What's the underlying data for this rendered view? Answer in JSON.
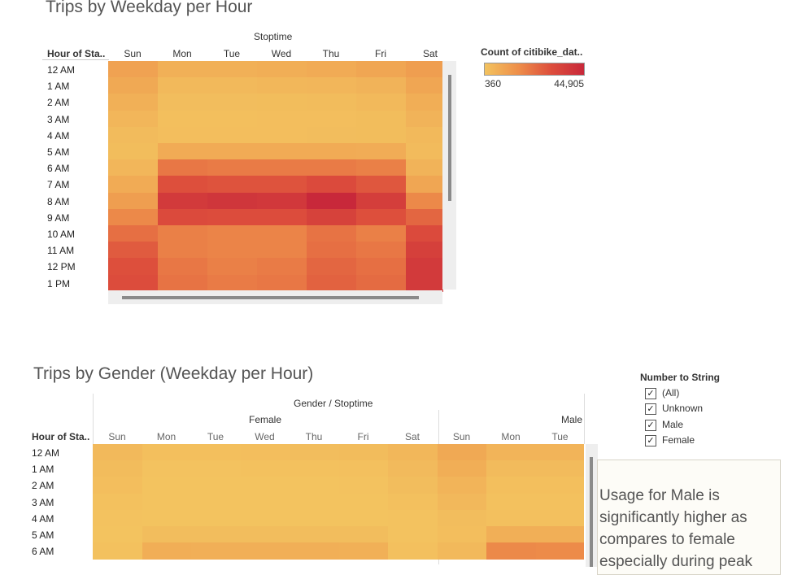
{
  "top_chart": {
    "title": "Trips by Weekday per Hour",
    "column_header": "Stoptime",
    "row_header": "Hour of Sta..",
    "days": [
      "Sun",
      "Mon",
      "Tue",
      "Wed",
      "Thu",
      "Fri",
      "Sat"
    ],
    "hours": [
      "12 AM",
      "1 AM",
      "2 AM",
      "3 AM",
      "4 AM",
      "5 AM",
      "6 AM",
      "7 AM",
      "8 AM",
      "9 AM",
      "10 AM",
      "11 AM",
      "12 PM",
      "1 PM"
    ]
  },
  "legend": {
    "title": "Count of citibike_dat..",
    "min_label": "360",
    "max_label": "44,905",
    "colors": [
      "#f3c35f",
      "#ee8f4a",
      "#dd4e3c",
      "#c8283a"
    ]
  },
  "bottom_chart": {
    "title": "Trips by Gender (Weekday per Hour)",
    "column_header": "Gender / Stoptime",
    "row_header": "Hour of Sta..",
    "groups": [
      "Female",
      "Male"
    ],
    "female_days": [
      "Sun",
      "Mon",
      "Tue",
      "Wed",
      "Thu",
      "Fri",
      "Sat"
    ],
    "male_days": [
      "Sun",
      "Mon",
      "Tue"
    ],
    "hours": [
      "12 AM",
      "1 AM",
      "2 AM",
      "3 AM",
      "4 AM",
      "5 AM",
      "6 AM"
    ]
  },
  "filter": {
    "title": "Number to String",
    "options": [
      {
        "label": "(All)",
        "checked": true
      },
      {
        "label": "Unknown",
        "checked": true
      },
      {
        "label": "Male",
        "checked": true
      },
      {
        "label": "Female",
        "checked": true
      }
    ]
  },
  "annotation": {
    "line1": "Usage for Male is",
    "line2": "significantly higher as",
    "line3": "compares to female",
    "line4": "especially during peak"
  },
  "chart_data": [
    {
      "type": "heatmap",
      "title": "Trips by Weekday per Hour",
      "xlabel": "Stoptime",
      "ylabel": "Hour of Sta..",
      "x": [
        "Sun",
        "Mon",
        "Tue",
        "Wed",
        "Thu",
        "Fri",
        "Sat"
      ],
      "y": [
        "12 AM",
        "1 AM",
        "2 AM",
        "3 AM",
        "4 AM",
        "5 AM",
        "6 AM",
        "7 AM",
        "8 AM",
        "9 AM",
        "10 AM",
        "11 AM",
        "12 PM",
        "1 PM"
      ],
      "color_range": [
        360,
        44905
      ],
      "values": [
        [
          6000,
          3000,
          3000,
          3500,
          4000,
          5000,
          7000
        ],
        [
          4500,
          1500,
          1500,
          1800,
          2000,
          2500,
          5000
        ],
        [
          3000,
          900,
          900,
          1000,
          1100,
          1500,
          3500
        ],
        [
          2000,
          700,
          700,
          800,
          800,
          1000,
          2500
        ],
        [
          1200,
          800,
          800,
          800,
          900,
          1000,
          1500
        ],
        [
          1000,
          4000,
          4000,
          4000,
          4000,
          3800,
          1200
        ],
        [
          2000,
          16000,
          15000,
          15000,
          15000,
          14000,
          2500
        ],
        [
          4000,
          26000,
          25000,
          25000,
          28000,
          24000,
          5000
        ],
        [
          7000,
          36000,
          38000,
          37000,
          44905,
          34000,
          12000
        ],
        [
          12000,
          28000,
          27000,
          27000,
          32000,
          26000,
          20000
        ],
        [
          18000,
          14000,
          13000,
          13000,
          17000,
          14000,
          28000
        ],
        [
          23000,
          14000,
          13000,
          13000,
          18000,
          16000,
          33000
        ],
        [
          26000,
          16000,
          14000,
          15000,
          20000,
          18000,
          36000
        ],
        [
          27000,
          17000,
          15000,
          16000,
          21000,
          19000,
          36000
        ]
      ]
    },
    {
      "type": "heatmap",
      "title": "Trips by Gender (Weekday per Hour)",
      "xlabel": "Gender / Stoptime",
      "ylabel": "Hour of Sta..",
      "groups": [
        {
          "name": "Female",
          "x": [
            "Sun",
            "Mon",
            "Tue",
            "Wed",
            "Thu",
            "Fri",
            "Sat"
          ]
        },
        {
          "name": "Male",
          "x": [
            "Sun",
            "Mon",
            "Tue"
          ]
        }
      ],
      "y": [
        "12 AM",
        "1 AM",
        "2 AM",
        "3 AM",
        "4 AM",
        "5 AM",
        "6 AM"
      ],
      "color_range": [
        360,
        44905
      ],
      "values": [
        [
          1500,
          700,
          700,
          800,
          900,
          1100,
          1800,
          4500,
          2300,
          2300
        ],
        [
          1100,
          400,
          400,
          500,
          500,
          600,
          1300,
          3500,
          1200,
          1200
        ],
        [
          800,
          300,
          300,
          300,
          300,
          400,
          900,
          2400,
          700,
          700
        ],
        [
          500,
          200,
          200,
          200,
          200,
          300,
          600,
          1600,
          500,
          500
        ],
        [
          400,
          200,
          200,
          200,
          200,
          300,
          400,
          900,
          600,
          600
        ],
        [
          300,
          900,
          900,
          900,
          900,
          900,
          400,
          800,
          3300,
          3300
        ],
        [
          500,
          3500,
          3300,
          3300,
          3300,
          3100,
          600,
          1500,
          12000,
          11500
        ]
      ]
    }
  ]
}
